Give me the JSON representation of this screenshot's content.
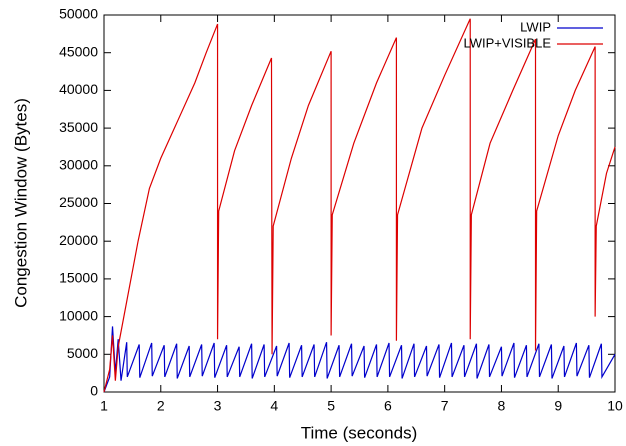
{
  "chart_data": {
    "type": "line",
    "xlabel": "Time (seconds)",
    "ylabel": "Congestion Window (Bytes)",
    "xlim": [
      1,
      10
    ],
    "ylim": [
      0,
      50000
    ],
    "xticks": [
      1,
      2,
      3,
      4,
      5,
      6,
      7,
      8,
      9,
      10
    ],
    "yticks": [
      0,
      5000,
      10000,
      15000,
      20000,
      25000,
      30000,
      35000,
      40000,
      45000,
      50000
    ],
    "legend": "top-right",
    "grid": false,
    "series": [
      {
        "name": "LWIP",
        "color": "#0000cc",
        "x": [
          1.0,
          1.1,
          1.15,
          1.2,
          1.25,
          1.3,
          1.4,
          1.41,
          1.62,
          1.63,
          1.84,
          1.85,
          2.06,
          2.07,
          2.28,
          2.29,
          2.5,
          2.51,
          2.72,
          2.73,
          2.94,
          2.95,
          3.16,
          3.17,
          3.38,
          3.39,
          3.6,
          3.61,
          3.82,
          3.83,
          4.04,
          4.05,
          4.26,
          4.27,
          4.48,
          4.49,
          4.7,
          4.71,
          4.92,
          4.93,
          5.14,
          5.15,
          5.36,
          5.37,
          5.58,
          5.59,
          5.8,
          5.81,
          6.02,
          6.03,
          6.24,
          6.25,
          6.46,
          6.47,
          6.68,
          6.69,
          6.9,
          6.91,
          7.12,
          7.13,
          7.34,
          7.35,
          7.56,
          7.57,
          7.78,
          7.79,
          8.0,
          8.01,
          8.22,
          8.23,
          8.44,
          8.45,
          8.66,
          8.67,
          8.88,
          8.89,
          9.1,
          9.11,
          9.32,
          9.33,
          9.54,
          9.55,
          9.76,
          9.77,
          10.0
        ],
        "values": [
          0,
          2000,
          8700,
          2500,
          7000,
          1500,
          6600,
          2000,
          6300,
          1900,
          6500,
          2100,
          6200,
          2000,
          6400,
          1800,
          6100,
          2000,
          6300,
          2100,
          6500,
          1900,
          6200,
          2000,
          6000,
          2000,
          6400,
          1800,
          6300,
          2000,
          6100,
          2100,
          6500,
          1900,
          6200,
          2000,
          6300,
          2000,
          6600,
          1800,
          6200,
          2000,
          6400,
          2100,
          6100,
          1900,
          6300,
          2000,
          6500,
          2000,
          6200,
          1800,
          6400,
          2000,
          6100,
          2100,
          6300,
          1900,
          6500,
          2000,
          6200,
          2000,
          6400,
          1800,
          6300,
          2000,
          6000,
          2100,
          6500,
          1900,
          6200,
          2000,
          6400,
          2000,
          6300,
          1800,
          6100,
          2000,
          6500,
          2100,
          6200,
          1900,
          6400,
          2000,
          5000
        ]
      },
      {
        "name": "LWIP+VISIBLE",
        "color": "#dd0000",
        "x": [
          1.0,
          1.1,
          1.15,
          1.2,
          1.25,
          1.4,
          1.6,
          1.8,
          2.0,
          2.3,
          2.6,
          2.8,
          3.0,
          3.0,
          3.02,
          3.3,
          3.6,
          3.95,
          3.96,
          3.98,
          4.3,
          4.6,
          5.0,
          5.0,
          5.02,
          5.4,
          5.8,
          6.15,
          6.15,
          6.17,
          6.6,
          7.0,
          7.45,
          7.45,
          7.47,
          7.8,
          8.2,
          8.6,
          8.6,
          8.62,
          9.0,
          9.3,
          9.65,
          9.65,
          9.67,
          9.85,
          10.0
        ],
        "values": [
          0,
          3000,
          7500,
          1500,
          6000,
          12000,
          20000,
          27000,
          31000,
          36000,
          41000,
          45000,
          48800,
          7000,
          24000,
          32000,
          38000,
          44300,
          5000,
          22000,
          31000,
          38000,
          45200,
          7500,
          23500,
          33000,
          41000,
          47000,
          6800,
          23500,
          35000,
          42000,
          49500,
          7000,
          23500,
          33000,
          40000,
          46800,
          5500,
          24000,
          34000,
          40000,
          45800,
          10000,
          22000,
          29000,
          32500
        ]
      }
    ]
  }
}
